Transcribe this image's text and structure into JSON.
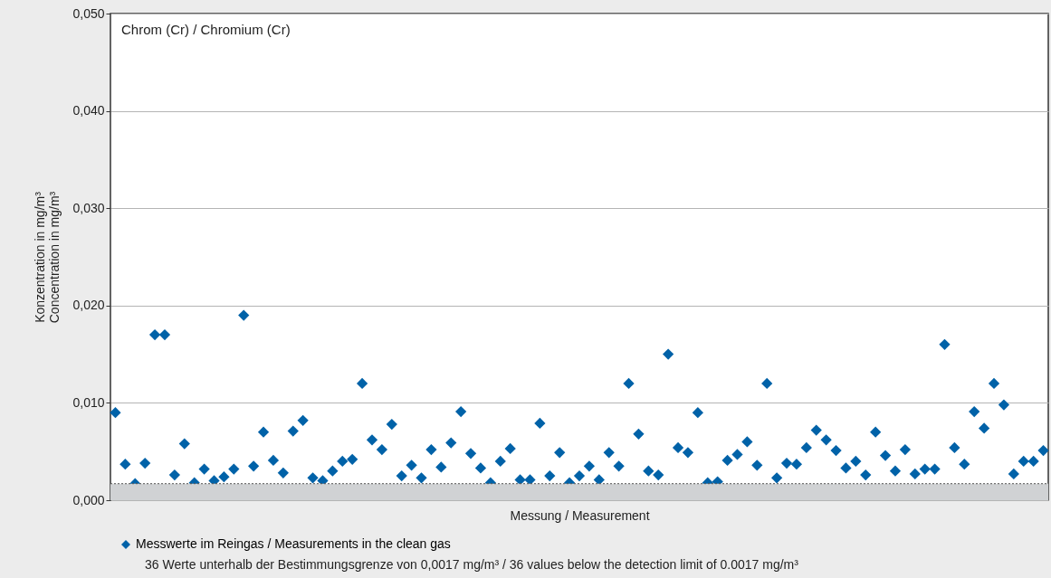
{
  "chart_data": {
    "type": "scatter",
    "title": "Chrom (Cr) / Chromium (Cr)",
    "xlabel": "Messung / Measurement",
    "ylabel": [
      "Konzentration in mg/m³",
      "Concentration in mg/m³"
    ],
    "categories": [
      null,
      null,
      null,
      null,
      null,
      null,
      null,
      null,
      null,
      null,
      null,
      null,
      null,
      null,
      null,
      null,
      null,
      null,
      null,
      null,
      null,
      null,
      null,
      null,
      null,
      null,
      null,
      null,
      null,
      null,
      null,
      null,
      null,
      null,
      null,
      null,
      null,
      null,
      null,
      null,
      null,
      null,
      null,
      null,
      null,
      null,
      null,
      null,
      null,
      null,
      null,
      null,
      null,
      null,
      null,
      null,
      null,
      null,
      null,
      null,
      null,
      null,
      null,
      null,
      null,
      null,
      null,
      null,
      null,
      null,
      null,
      null,
      null,
      null,
      null,
      null,
      null,
      null,
      null,
      null,
      null,
      null,
      null,
      null,
      null,
      null,
      null,
      null,
      null,
      null,
      null,
      null,
      null,
      null,
      null
    ],
    "series": [
      {
        "name": "Messwerte im Reingas / Measurements in the clean gas",
        "color": "#0062a8",
        "values": [
          0.009,
          0.0037,
          0.0017,
          0.0038,
          0.017,
          0.017,
          0.0026,
          0.0058,
          0.0018,
          0.0032,
          0.002,
          0.0024,
          0.0032,
          0.019,
          0.0035,
          0.007,
          0.0041,
          0.0028,
          0.0071,
          0.0082,
          0.0023,
          0.002,
          0.003,
          0.004,
          0.0042,
          0.012,
          0.0062,
          0.0052,
          0.0078,
          0.0025,
          0.0036,
          0.0023,
          0.0052,
          0.0034,
          0.0059,
          0.0091,
          0.0048,
          0.0033,
          0.0018,
          0.004,
          0.0053,
          0.0021,
          0.0021,
          0.0079,
          0.0025,
          0.0049,
          0.0018,
          0.0025,
          0.0035,
          0.0021,
          0.0049,
          0.0035,
          0.012,
          0.0068,
          0.003,
          0.0026,
          0.015,
          0.0054,
          0.0049,
          0.009,
          0.0018,
          0.0019,
          0.0041,
          0.0047,
          0.006,
          0.0036,
          0.012,
          0.0023,
          0.0038,
          0.0037,
          0.0054,
          0.0072,
          0.0062,
          0.0051,
          0.0033,
          0.004,
          0.0026,
          0.007,
          0.0046,
          0.003,
          0.0052,
          0.0027,
          0.0032,
          0.0032,
          0.016,
          0.0054,
          0.0037,
          0.0091,
          0.0074,
          0.012,
          0.0098,
          0.0027,
          0.004,
          0.004,
          0.0051
        ]
      }
    ],
    "ylim": [
      0,
      0.05
    ],
    "yticks": [
      {
        "value": 0,
        "label": "0,000"
      },
      {
        "value": 0.01,
        "label": "0,010"
      },
      {
        "value": 0.02,
        "label": "0,020"
      },
      {
        "value": 0.03,
        "label": "0,030"
      },
      {
        "value": 0.04,
        "label": "0,040"
      },
      {
        "value": 0.05,
        "label": "0,050"
      }
    ],
    "grid": "y",
    "marker": "diamond",
    "legend": "bottom left",
    "bands": [
      {
        "axis": "y",
        "from": 0,
        "to": 0.0017,
        "color": "#d0d2d4"
      }
    ],
    "ref_lines": [
      {
        "axis": "y",
        "value": 0.0017,
        "color": "#555555",
        "line_style": "dotted"
      }
    ],
    "annotations": [
      "36 Werte unterhalb der Bestimmungsgrenze von 0,0017 mg/m³ / 36 values below the detection limit of 0.0017 mg/m³"
    ]
  }
}
